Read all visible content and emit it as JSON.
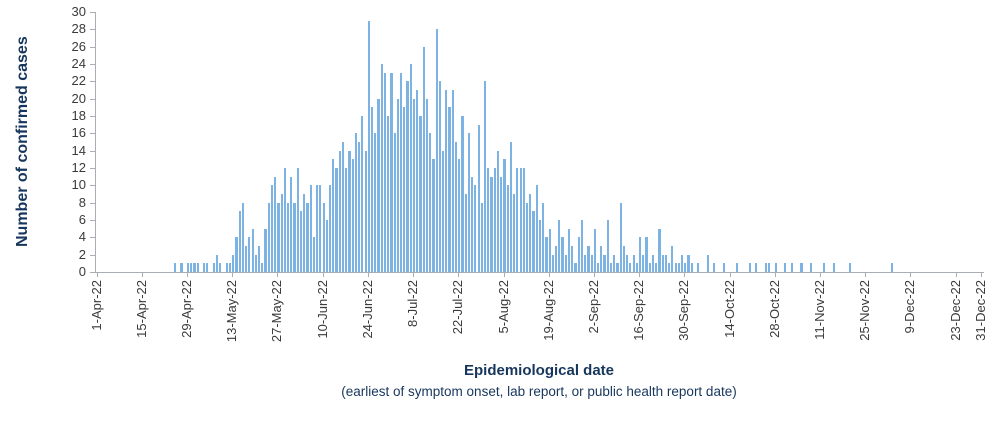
{
  "colors": {
    "bar": "#7db3e3",
    "axis_title": "#17365d",
    "tick_text": "#3a3a3a",
    "axis_line": "#a9aeb4"
  },
  "chart_data": {
    "type": "bar",
    "title": "",
    "ylabel": "Number of confirmed cases",
    "xlabel": "Epidemiological date",
    "x_sublabel": "(earliest of symptom onset, lab report, or public health report date)",
    "ylim": [
      0,
      30
    ],
    "y_tick_step": 2,
    "y_tick_labels": [
      0,
      2,
      4,
      6,
      8,
      10,
      12,
      14,
      16,
      18,
      20,
      22,
      24,
      26,
      28,
      30
    ],
    "grid": false,
    "legend": false,
    "x_unit": "day",
    "x_start": "1-Apr-22",
    "x_end": "31-Dec-22",
    "x_tick_indices": [
      0,
      14,
      28,
      42,
      56,
      70,
      84,
      98,
      112,
      126,
      140,
      154,
      168,
      182,
      196,
      210,
      224,
      238,
      252,
      266,
      274
    ],
    "x_tick_labels": [
      "1-Apr-22",
      "15-Apr-22",
      "29-Apr-22",
      "13-May-22",
      "27-May-22",
      "10-Jun-22",
      "24-Jun-22",
      "8-Jul-22",
      "22-Jul-22",
      "5-Aug-22",
      "19-Aug-22",
      "2-Sep-22",
      "16-Sep-22",
      "30-Sep-22",
      "14-Oct-22",
      "28-Oct-22",
      "11-Nov-22",
      "25-Nov-22",
      "9-Dec-22",
      "23-Dec-22",
      "31-Dec-22"
    ],
    "values": [
      0,
      0,
      0,
      0,
      0,
      0,
      0,
      0,
      0,
      0,
      0,
      0,
      0,
      0,
      0,
      0,
      0,
      0,
      0,
      0,
      0,
      0,
      0,
      0,
      1,
      0,
      1,
      0,
      1,
      1,
      1,
      1,
      0,
      1,
      1,
      0,
      1,
      2,
      1,
      0,
      1,
      1,
      2,
      4,
      7,
      8,
      3,
      4,
      5,
      2,
      3,
      1,
      5,
      8,
      10,
      11,
      8,
      9,
      12,
      8,
      11,
      8,
      12,
      7,
      9,
      8,
      10,
      4,
      10,
      10,
      8,
      6,
      10,
      13,
      12,
      14,
      15,
      12,
      14,
      13,
      16,
      15,
      18,
      14,
      29,
      19,
      16,
      20,
      24,
      23,
      18,
      23,
      16,
      20,
      23,
      19,
      22,
      24,
      20,
      21,
      18,
      26,
      20,
      16,
      13,
      28,
      22,
      14,
      21,
      19,
      21,
      15,
      13,
      18,
      9,
      16,
      11,
      10,
      17,
      8,
      22,
      12,
      11,
      12,
      14,
      11,
      13,
      10,
      15,
      9,
      12,
      12,
      12,
      8,
      9,
      7,
      10,
      6,
      8,
      4,
      5,
      2,
      3,
      6,
      4,
      2,
      5,
      3,
      1,
      4,
      6,
      2,
      3,
      2,
      5,
      1,
      3,
      2,
      6,
      1,
      2,
      1,
      8,
      3,
      2,
      1,
      2,
      1,
      4,
      2,
      4,
      1,
      2,
      1,
      5,
      2,
      2,
      1,
      3,
      1,
      1,
      2,
      1,
      2,
      1,
      0,
      1,
      0,
      0,
      2,
      0,
      1,
      0,
      0,
      1,
      0,
      0,
      0,
      1,
      0,
      0,
      0,
      1,
      0,
      1,
      0,
      0,
      1,
      1,
      0,
      1,
      0,
      0,
      1,
      0,
      1,
      0,
      0,
      1,
      0,
      0,
      1,
      0,
      0,
      0,
      1,
      0,
      0,
      1,
      0,
      0,
      0,
      0,
      1,
      0,
      0,
      0,
      0,
      0,
      0,
      0,
      0,
      0,
      0,
      0,
      0,
      1,
      0,
      0,
      0,
      0,
      0,
      0,
      0,
      0,
      0,
      0,
      0,
      0,
      0,
      0,
      0,
      0,
      0,
      0,
      0,
      0,
      0,
      0,
      0,
      0,
      0,
      0,
      0,
      0
    ]
  }
}
